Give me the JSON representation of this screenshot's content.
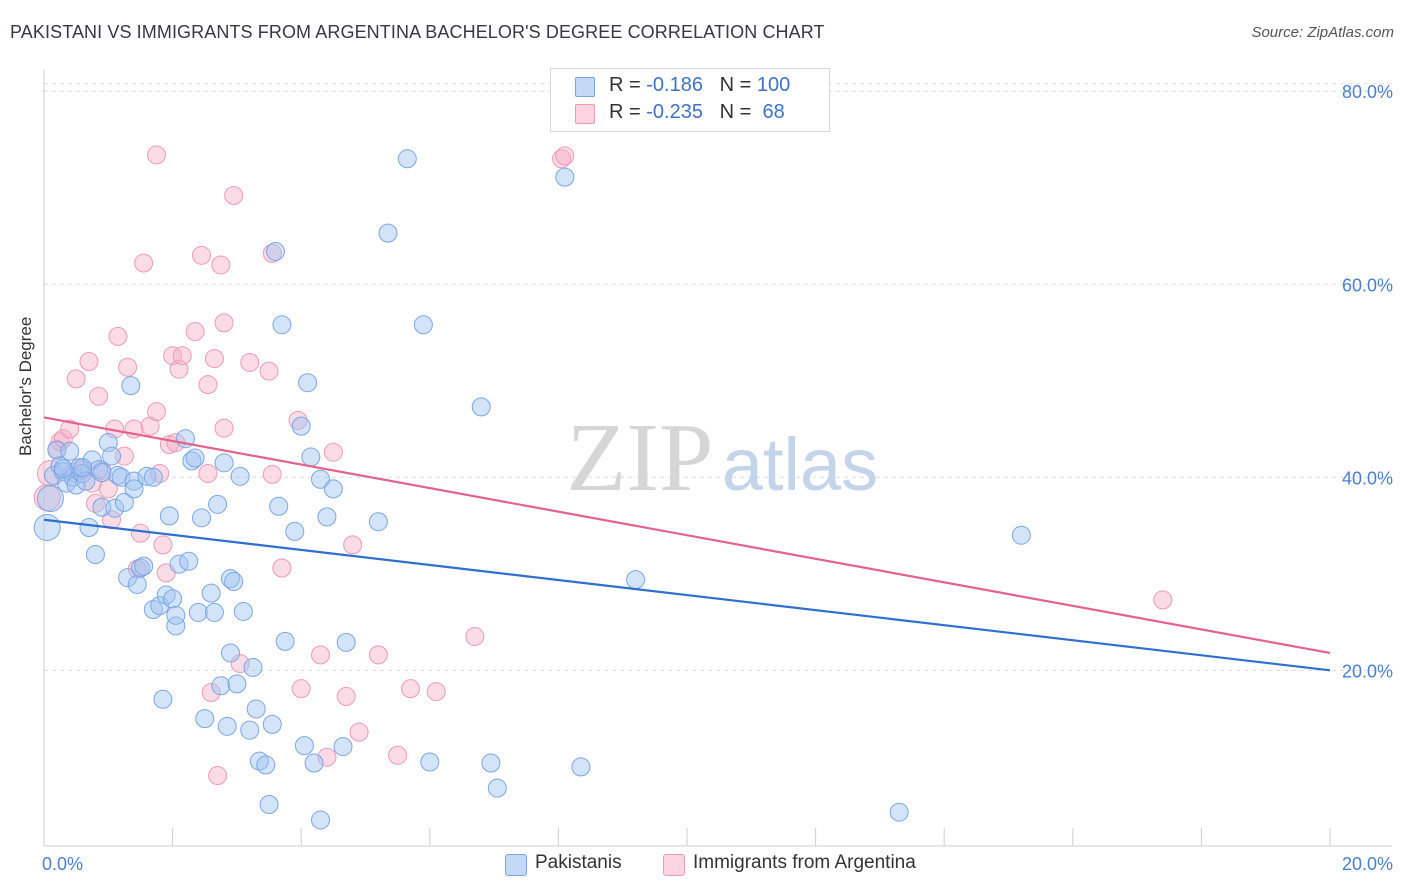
{
  "title": "PAKISTANI VS IMMIGRANTS FROM ARGENTINA BACHELOR'S DEGREE CORRELATION CHART",
  "source": "Source: ZipAtlas.com",
  "watermark": {
    "part1": "ZIP",
    "part2": "atlas"
  },
  "legend": {
    "rows": [
      {
        "r_label": "R = ",
        "r_value": "-0.186",
        "n_label": "N = ",
        "n_value": "100",
        "color": "#7aa6e8"
      },
      {
        "r_label": "R = ",
        "r_value": "-0.235",
        "n_label": "N = ",
        "n_value": " 68",
        "color": "#f09ab6"
      }
    ]
  },
  "bottom_legend": [
    {
      "label": "Pakistanis",
      "color": "#7aa6e8"
    },
    {
      "label": "Immigrants from Argentina",
      "color": "#f09ab6"
    }
  ],
  "chart_data": {
    "type": "scatter",
    "title": "PAKISTANI VS IMMIGRANTS FROM ARGENTINA BACHELOR'S DEGREE CORRELATION CHART",
    "xlabel": "",
    "ylabel": "Bachelor's Degree",
    "xlim": [
      0,
      20
    ],
    "ylim": [
      1.8,
      82.2
    ],
    "x_tick_labels": [
      {
        "value": 0,
        "label": "0.0%"
      },
      {
        "value": 20,
        "label": "20.0%"
      }
    ],
    "y_tick_labels": [
      {
        "value": 20,
        "label": "20.0%"
      },
      {
        "value": 40,
        "label": "40.0%"
      },
      {
        "value": 60,
        "label": "60.0%"
      },
      {
        "value": 80,
        "label": "80.0%"
      }
    ],
    "grid": true,
    "series": [
      {
        "name": "Pakistanis",
        "color": "#7aa6e8",
        "line_color": "#2e6fd0",
        "trend": {
          "x": [
            0,
            20
          ],
          "y": [
            35.6,
            20.0
          ]
        },
        "points": [
          [
            0.05,
            34.8
          ],
          [
            0.1,
            37.8
          ],
          [
            0.15,
            40.2
          ],
          [
            0.2,
            42.8
          ],
          [
            0.25,
            41.2
          ],
          [
            0.3,
            40.6
          ],
          [
            0.35,
            39.4
          ],
          [
            0.4,
            42.7
          ],
          [
            0.45,
            40.0
          ],
          [
            0.5,
            39.2
          ],
          [
            0.55,
            41.0
          ],
          [
            0.6,
            40.4
          ],
          [
            0.65,
            39.6
          ],
          [
            0.7,
            34.8
          ],
          [
            0.75,
            41.8
          ],
          [
            0.8,
            32.0
          ],
          [
            0.85,
            40.8
          ],
          [
            0.9,
            36.9
          ],
          [
            1.0,
            43.6
          ],
          [
            1.05,
            42.2
          ],
          [
            1.1,
            36.8
          ],
          [
            1.15,
            40.2
          ],
          [
            1.2,
            40.0
          ],
          [
            1.25,
            37.4
          ],
          [
            1.3,
            29.6
          ],
          [
            1.35,
            49.5
          ],
          [
            1.4,
            39.6
          ],
          [
            1.45,
            28.9
          ],
          [
            1.5,
            30.6
          ],
          [
            1.55,
            30.8
          ],
          [
            1.6,
            40.1
          ],
          [
            1.7,
            40.0
          ],
          [
            1.7,
            26.3
          ],
          [
            1.8,
            26.7
          ],
          [
            1.85,
            17.0
          ],
          [
            1.9,
            27.8
          ],
          [
            1.95,
            36.0
          ],
          [
            2.0,
            27.4
          ],
          [
            2.05,
            24.6
          ],
          [
            2.1,
            31.0
          ],
          [
            2.2,
            44.0
          ],
          [
            2.25,
            31.3
          ],
          [
            2.3,
            41.7
          ],
          [
            2.35,
            42.0
          ],
          [
            2.4,
            26.0
          ],
          [
            2.45,
            35.8
          ],
          [
            2.5,
            15.0
          ],
          [
            2.6,
            28.0
          ],
          [
            2.65,
            26.0
          ],
          [
            2.7,
            37.2
          ],
          [
            2.75,
            18.4
          ],
          [
            2.8,
            41.5
          ],
          [
            2.85,
            14.2
          ],
          [
            2.9,
            21.8
          ],
          [
            2.9,
            29.5
          ],
          [
            2.95,
            29.2
          ],
          [
            3.0,
            18.6
          ],
          [
            3.1,
            26.1
          ],
          [
            3.2,
            13.8
          ],
          [
            3.25,
            20.3
          ],
          [
            3.3,
            16.0
          ],
          [
            3.35,
            10.6
          ],
          [
            3.45,
            10.2
          ],
          [
            3.5,
            6.1
          ],
          [
            3.55,
            14.4
          ],
          [
            3.6,
            63.4
          ],
          [
            3.65,
            37.0
          ],
          [
            3.7,
            55.8
          ],
          [
            3.75,
            23.0
          ],
          [
            3.9,
            34.4
          ],
          [
            4.0,
            45.3
          ],
          [
            4.05,
            12.2
          ],
          [
            4.1,
            49.8
          ],
          [
            4.15,
            42.1
          ],
          [
            4.2,
            10.4
          ],
          [
            4.3,
            39.8
          ],
          [
            4.3,
            4.5
          ],
          [
            4.4,
            35.9
          ],
          [
            4.5,
            38.8
          ],
          [
            4.65,
            12.1
          ],
          [
            4.7,
            22.9
          ],
          [
            5.35,
            65.3
          ],
          [
            5.65,
            73.0
          ],
          [
            5.9,
            55.8
          ],
          [
            6.0,
            10.5
          ],
          [
            6.8,
            47.3
          ],
          [
            6.95,
            10.4
          ],
          [
            7.05,
            7.8
          ],
          [
            8.1,
            71.1
          ],
          [
            8.35,
            10.0
          ],
          [
            9.2,
            29.4
          ],
          [
            13.3,
            5.3
          ],
          [
            15.2,
            34.0
          ],
          [
            0.3,
            40.9
          ],
          [
            0.6,
            41.0
          ],
          [
            1.4,
            38.8
          ],
          [
            2.05,
            25.7
          ],
          [
            3.05,
            40.1
          ],
          [
            5.2,
            35.4
          ],
          [
            0.9,
            40.5
          ]
        ]
      },
      {
        "name": "Immigrants from Argentina",
        "color": "#f09ab6",
        "line_color": "#e3638d",
        "trend": {
          "x": [
            0,
            20
          ],
          "y": [
            46.2,
            21.8
          ]
        },
        "points": [
          [
            0.05,
            37.9
          ],
          [
            0.1,
            40.4
          ],
          [
            0.2,
            42.9
          ],
          [
            0.25,
            43.7
          ],
          [
            0.3,
            44.0
          ],
          [
            0.4,
            45.0
          ],
          [
            0.45,
            40.5
          ],
          [
            0.5,
            50.2
          ],
          [
            0.6,
            40.8
          ],
          [
            0.7,
            52.0
          ],
          [
            0.75,
            39.4
          ],
          [
            0.8,
            37.3
          ],
          [
            0.85,
            48.4
          ],
          [
            0.9,
            40.7
          ],
          [
            1.0,
            38.8
          ],
          [
            1.05,
            35.6
          ],
          [
            1.1,
            45.0
          ],
          [
            1.15,
            54.6
          ],
          [
            1.25,
            42.2
          ],
          [
            1.3,
            51.4
          ],
          [
            1.4,
            45.0
          ],
          [
            1.45,
            30.5
          ],
          [
            1.5,
            34.2
          ],
          [
            1.55,
            62.2
          ],
          [
            1.65,
            45.3
          ],
          [
            1.75,
            46.8
          ],
          [
            1.75,
            73.4
          ],
          [
            1.85,
            33.0
          ],
          [
            1.9,
            30.1
          ],
          [
            1.95,
            43.4
          ],
          [
            2.0,
            52.6
          ],
          [
            2.05,
            43.6
          ],
          [
            2.1,
            51.2
          ],
          [
            2.15,
            52.6
          ],
          [
            2.35,
            55.1
          ],
          [
            2.45,
            63.0
          ],
          [
            2.55,
            40.4
          ],
          [
            2.55,
            49.6
          ],
          [
            2.6,
            17.7
          ],
          [
            2.65,
            52.3
          ],
          [
            2.75,
            62.0
          ],
          [
            2.8,
            45.1
          ],
          [
            2.8,
            56.0
          ],
          [
            2.95,
            69.2
          ],
          [
            3.05,
            20.7
          ],
          [
            3.2,
            51.9
          ],
          [
            3.5,
            51.0
          ],
          [
            3.55,
            40.3
          ],
          [
            3.55,
            63.2
          ],
          [
            3.7,
            30.6
          ],
          [
            3.95,
            45.9
          ],
          [
            4.0,
            18.1
          ],
          [
            4.3,
            21.6
          ],
          [
            4.4,
            11.0
          ],
          [
            4.5,
            42.6
          ],
          [
            4.7,
            17.3
          ],
          [
            4.8,
            33.0
          ],
          [
            4.9,
            13.6
          ],
          [
            5.2,
            21.6
          ],
          [
            5.5,
            11.2
          ],
          [
            5.7,
            18.1
          ],
          [
            6.1,
            17.8
          ],
          [
            6.7,
            23.5
          ],
          [
            8.05,
            73.0
          ],
          [
            8.1,
            73.3
          ],
          [
            1.8,
            40.4
          ],
          [
            2.7,
            9.1
          ],
          [
            17.4,
            27.3
          ]
        ]
      }
    ]
  }
}
